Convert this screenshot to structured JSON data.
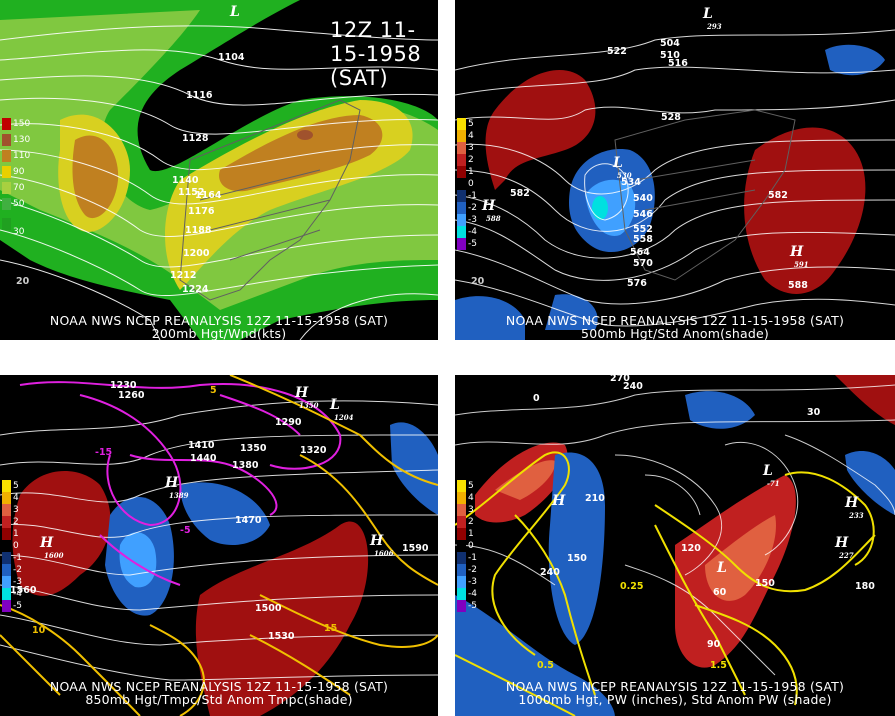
{
  "title": "12Z 11-15-1958 (SAT)",
  "panels": [
    {
      "id": "200mb",
      "caption_line1": "NOAA NWS NCEP REANALYSIS 12Z 11-15-1958 (SAT)",
      "caption_line2": "200mb Hgt/Wnd(kts)",
      "legend": [
        {
          "label": "150",
          "color": "#c00000"
        },
        {
          "label": "130",
          "color": "#a0522d"
        },
        {
          "label": "110",
          "color": "#c08020"
        },
        {
          "label": "90",
          "color": "#e8d000"
        },
        {
          "label": "70",
          "color": "#a8d040"
        },
        {
          "label": "50",
          "color": "#40b040"
        },
        {
          "label": "30",
          "color": "#20a020"
        }
      ],
      "contour_labels": [
        "1104",
        "1116",
        "1128",
        "1140",
        "1152",
        "1164",
        "1176",
        "1188",
        "1200",
        "1212",
        "1224",
        "20"
      ],
      "lows": [
        "L"
      ]
    },
    {
      "id": "500mb",
      "caption_line1": "NOAA NWS NCEP REANALYSIS 12Z 11-15-1958 (SAT)",
      "caption_line2": "500mb Hgt/Std Anom(shade)",
      "legend": [
        {
          "label": "5",
          "color": "#f8e000"
        },
        {
          "label": "4",
          "color": "#f0b000"
        },
        {
          "label": "3",
          "color": "#e06040"
        },
        {
          "label": "2",
          "color": "#c02020"
        },
        {
          "label": "1",
          "color": "#900000"
        },
        {
          "label": "0",
          "color": "#000000"
        },
        {
          "label": "-1",
          "color": "#103070"
        },
        {
          "label": "-2",
          "color": "#2060c0"
        },
        {
          "label": "-3",
          "color": "#40a0ff"
        },
        {
          "label": "-4",
          "color": "#00e0e0"
        },
        {
          "label": "-5",
          "color": "#8000c0"
        }
      ],
      "contour_labels": [
        "504",
        "510",
        "516",
        "522",
        "528",
        "534",
        "540",
        "546",
        "552",
        "558",
        "564",
        "570",
        "576",
        "582",
        "588",
        "20"
      ],
      "small_labels": [
        "530",
        "588",
        "591",
        "293"
      ]
    },
    {
      "id": "850mb",
      "caption_line1": "NOAA NWS NCEP REANALYSIS 12Z 11-15-1958 (SAT)",
      "caption_line2": "850mb Hgt/Tmpc/Std Anom Tmpc(shade)",
      "legend": [
        {
          "label": "5",
          "color": "#f8e000"
        },
        {
          "label": "4",
          "color": "#f0b000"
        },
        {
          "label": "3",
          "color": "#e06040"
        },
        {
          "label": "2",
          "color": "#c02020"
        },
        {
          "label": "1",
          "color": "#900000"
        },
        {
          "label": "0",
          "color": "#000000"
        },
        {
          "label": "-1",
          "color": "#103070"
        },
        {
          "label": "-2",
          "color": "#2060c0"
        },
        {
          "label": "-3",
          "color": "#40a0ff"
        },
        {
          "label": "-4",
          "color": "#00e0e0"
        },
        {
          "label": "-5",
          "color": "#8000c0"
        }
      ],
      "contour_labels": [
        "1230",
        "1260",
        "1290",
        "1320",
        "1350",
        "1380",
        "1410",
        "1440",
        "1470",
        "1500",
        "1530",
        "1560",
        "1590",
        "-15",
        "-5",
        "5",
        "10",
        "15"
      ],
      "small_labels": [
        "1600",
        "1606",
        "1389",
        "1350",
        "1204"
      ]
    },
    {
      "id": "1000mb",
      "caption_line1": "NOAA NWS NCEP REANALYSIS 12Z 11-15-1958 (SAT)",
      "caption_line2": "1000mb Hgt, PW (inches), Std Anom PW (shade)",
      "legend": [
        {
          "label": "5",
          "color": "#f8e000"
        },
        {
          "label": "4",
          "color": "#f0b000"
        },
        {
          "label": "3",
          "color": "#e06040"
        },
        {
          "label": "2",
          "color": "#c02020"
        },
        {
          "label": "1",
          "color": "#900000"
        },
        {
          "label": "0",
          "color": "#000000"
        },
        {
          "label": "-1",
          "color": "#103070"
        },
        {
          "label": "-2",
          "color": "#2060c0"
        },
        {
          "label": "-3",
          "color": "#40a0ff"
        },
        {
          "label": "-4",
          "color": "#00e0e0"
        },
        {
          "label": "-5",
          "color": "#8000c0"
        }
      ],
      "contour_labels": [
        "270",
        "240",
        "210",
        "180",
        "150",
        "120",
        "90",
        "60",
        "30",
        "0",
        "0.5",
        "0.25",
        "1.5"
      ],
      "small_labels": [
        "233",
        "227",
        "-71"
      ]
    }
  ]
}
